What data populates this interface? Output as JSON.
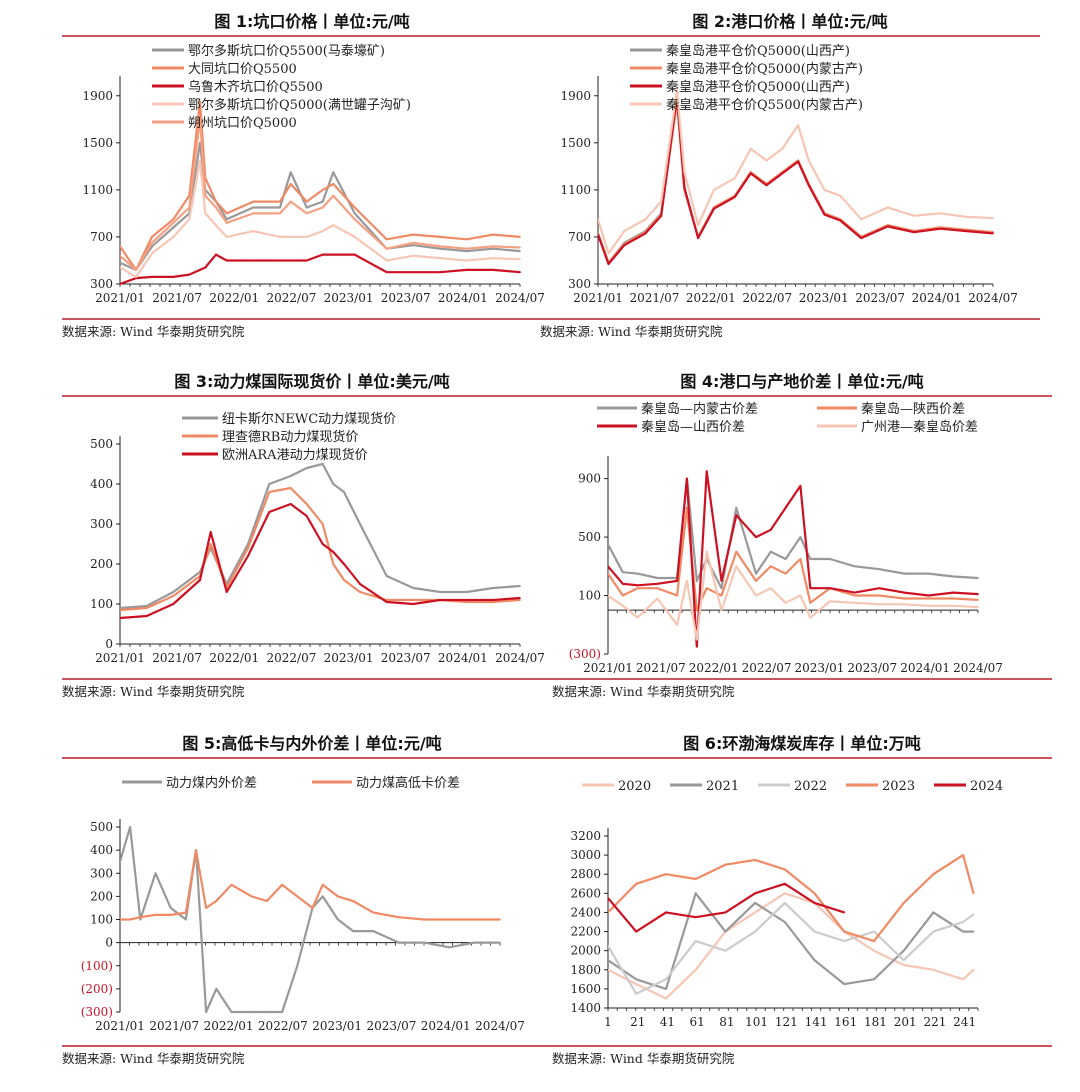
{
  "source": "数据来源:  Wind 华泰期货研究院",
  "figures": [
    {
      "title": "图 1:坑口价格丨单位:元/吨"
    },
    {
      "title": "图 2:港口价格丨单位:元/吨"
    },
    {
      "title": "图 3:动力煤国际现货价丨单位:美元/吨"
    },
    {
      "title": "图 4:港口与产地价差丨单位:元/吨"
    },
    {
      "title": "图 5:高低卡与内外价差丨单位:元/吨"
    },
    {
      "title": "图 6:环渤海煤炭库存丨单位:万吨"
    }
  ],
  "chart_data": [
    {
      "type": "line",
      "title": "图 1:坑口价格丨单位:元/吨",
      "x_tick_labels": [
        "2021/01",
        "2021/07",
        "2022/01",
        "2022/07",
        "2023/01",
        "2023/07",
        "2024/01",
        "2024/07"
      ],
      "x_range": [
        2021.0,
        2024.75
      ],
      "y_ticks": [
        300,
        700,
        1100,
        1500,
        1900
      ],
      "ylim": [
        300,
        2000
      ],
      "legend_position": "top-left",
      "x": [
        2021.0,
        2021.15,
        2021.3,
        2021.5,
        2021.65,
        2021.75,
        2021.8,
        2021.9,
        2022.0,
        2022.25,
        2022.5,
        2022.6,
        2022.75,
        2022.9,
        2023.0,
        2023.2,
        2023.5,
        2023.75,
        2024.0,
        2024.25,
        2024.5,
        2024.75
      ],
      "series": [
        {
          "name": "鄂尔多斯坑口价Q5500(马泰壕矿)",
          "color": "#999999",
          "values": [
            480,
            420,
            620,
            780,
            900,
            1500,
            1100,
            1000,
            850,
            950,
            950,
            1250,
            950,
            1000,
            1250,
            900,
            600,
            630,
            600,
            580,
            600,
            580
          ]
        },
        {
          "name": "大同坑口价Q5500",
          "color": "#f08a64",
          "values": [
            620,
            420,
            700,
            850,
            1050,
            1850,
            1200,
            1000,
            900,
            1000,
            1000,
            1150,
            1000,
            1100,
            1150,
            950,
            680,
            720,
            700,
            680,
            720,
            700
          ]
        },
        {
          "name": "乌鲁木齐坑口价Q5500",
          "color": "#cc1122",
          "values": [
            300,
            350,
            360,
            360,
            380,
            420,
            440,
            550,
            500,
            500,
            500,
            500,
            500,
            550,
            550,
            550,
            400,
            400,
            400,
            420,
            420,
            400
          ]
        },
        {
          "name": "鄂尔多斯坑口价Q5000(满世罐子沟矿)",
          "color": "#f6c6b4",
          "values": [
            440,
            360,
            560,
            700,
            850,
            1350,
            900,
            800,
            700,
            750,
            700,
            700,
            700,
            750,
            800,
            700,
            500,
            540,
            520,
            500,
            520,
            510
          ]
        },
        {
          "name": "朔州坑口价Q5000",
          "color": "#f5a082",
          "values": [
            540,
            420,
            650,
            820,
            950,
            1700,
            1050,
            950,
            820,
            900,
            900,
            1000,
            900,
            950,
            1050,
            850,
            600,
            650,
            620,
            600,
            620,
            610
          ]
        }
      ]
    },
    {
      "type": "line",
      "title": "图 2:港口价格丨单位:元/吨",
      "x_tick_labels": [
        "2021/01",
        "2021/07",
        "2022/01",
        "2022/07",
        "2023/01",
        "2023/07",
        "2024/01",
        "2024/07"
      ],
      "x_range": [
        2021.0,
        2024.75
      ],
      "y_ticks": [
        300,
        700,
        1100,
        1500,
        1900
      ],
      "ylim": [
        300,
        2000
      ],
      "legend_position": "top-left",
      "x": [
        2021.0,
        2021.1,
        2021.25,
        2021.45,
        2021.6,
        2021.75,
        2021.82,
        2021.95,
        2022.1,
        2022.3,
        2022.45,
        2022.6,
        2022.75,
        2022.9,
        2023.0,
        2023.15,
        2023.3,
        2023.5,
        2023.75,
        2024.0,
        2024.25,
        2024.5,
        2024.75
      ],
      "series": [
        {
          "name": "秦皇岛港平仓价Q5000(山西产)",
          "color": "#999999",
          "values": [
            730,
            480,
            650,
            750,
            900,
            1850,
            1100,
            700,
            950,
            1050,
            1250,
            1150,
            1250,
            1350,
            1150,
            900,
            850,
            700,
            800,
            750,
            780,
            760,
            740
          ]
        },
        {
          "name": "秦皇岛港平仓价Q5000(内蒙古产)",
          "color": "#f08a64",
          "values": [
            730,
            480,
            640,
            740,
            890,
            1850,
            1100,
            700,
            950,
            1050,
            1250,
            1150,
            1250,
            1350,
            1150,
            900,
            850,
            700,
            800,
            750,
            780,
            760,
            740
          ]
        },
        {
          "name": "秦皇岛港平仓价Q5000(山西产)",
          "color": "#cc1122",
          "values": [
            720,
            470,
            630,
            730,
            880,
            1900,
            1120,
            690,
            940,
            1040,
            1240,
            1140,
            1240,
            1340,
            1140,
            890,
            840,
            690,
            790,
            740,
            770,
            750,
            730
          ]
        },
        {
          "name": "秦皇岛港平仓价Q5500(内蒙古产)",
          "color": "#f6c6b4",
          "values": [
            850,
            560,
            750,
            850,
            1000,
            1950,
            1250,
            800,
            1100,
            1200,
            1450,
            1350,
            1450,
            1650,
            1350,
            1100,
            1050,
            850,
            950,
            880,
            900,
            870,
            860
          ]
        }
      ]
    },
    {
      "type": "line",
      "title": "图 3:动力煤国际现货价丨单位:美元/吨",
      "x_tick_labels": [
        "2021/01",
        "2021/07",
        "2022/01",
        "2022/07",
        "2023/01",
        "2023/07",
        "2024/01",
        "2024/07"
      ],
      "x_range": [
        2021.0,
        2024.75
      ],
      "y_ticks": [
        0,
        100,
        200,
        300,
        400,
        500
      ],
      "ylim": [
        0,
        500
      ],
      "legend_position": "top-center",
      "x": [
        2021.0,
        2021.25,
        2021.5,
        2021.75,
        2021.85,
        2022.0,
        2022.2,
        2022.4,
        2022.6,
        2022.75,
        2022.9,
        2023.0,
        2023.1,
        2023.25,
        2023.5,
        2023.75,
        2024.0,
        2024.25,
        2024.5,
        2024.75
      ],
      "series": [
        {
          "name": "纽卡斯尔NEWC动力煤现货价",
          "color": "#999999",
          "values": [
            90,
            95,
            130,
            180,
            240,
            150,
            250,
            400,
            420,
            440,
            450,
            400,
            380,
            300,
            170,
            140,
            130,
            130,
            140,
            145
          ]
        },
        {
          "name": "理查德RB动力煤现货价",
          "color": "#f08a64",
          "values": [
            85,
            90,
            120,
            170,
            250,
            140,
            240,
            380,
            390,
            350,
            300,
            200,
            160,
            130,
            110,
            110,
            110,
            105,
            105,
            110
          ]
        },
        {
          "name": "欧洲ARA港动力煤现货价",
          "color": "#cc1122",
          "values": [
            65,
            70,
            100,
            160,
            280,
            130,
            220,
            330,
            350,
            320,
            250,
            230,
            200,
            150,
            105,
            100,
            110,
            110,
            110,
            115
          ]
        }
      ]
    },
    {
      "type": "line",
      "title": "图 4:港口与产地价差丨单位:元/吨",
      "x_tick_labels": [
        "2021/01",
        "2021/07",
        "2022/01",
        "2022/07",
        "2023/01",
        "2023/07",
        "2024/01",
        "2024/07"
      ],
      "x_range": [
        2021.0,
        2024.75
      ],
      "y_ticks": [
        -300,
        100,
        500,
        900
      ],
      "y_tick_labels": [
        "(300)",
        "100",
        "500",
        "900"
      ],
      "ylim": [
        -300,
        1000
      ],
      "legend_position": "top",
      "x": [
        2021.0,
        2021.15,
        2021.3,
        2021.5,
        2021.7,
        2021.8,
        2021.9,
        2022.0,
        2022.15,
        2022.3,
        2022.5,
        2022.65,
        2022.8,
        2022.95,
        2023.05,
        2023.25,
        2023.5,
        2023.75,
        2024.0,
        2024.25,
        2024.5,
        2024.75
      ],
      "series": [
        {
          "name": "秦皇岛—内蒙古价差",
          "color": "#999999",
          "values": [
            450,
            260,
            250,
            220,
            220,
            900,
            200,
            350,
            150,
            700,
            250,
            400,
            350,
            500,
            350,
            350,
            300,
            280,
            250,
            250,
            230,
            220
          ]
        },
        {
          "name": "秦皇岛—陕西价差",
          "color": "#f08a64",
          "values": [
            250,
            100,
            150,
            150,
            100,
            700,
            0,
            150,
            100,
            400,
            200,
            300,
            250,
            350,
            50,
            150,
            100,
            100,
            80,
            80,
            80,
            70
          ]
        },
        {
          "name": "秦皇岛—山西价差",
          "color": "#cc1122",
          "values": [
            300,
            180,
            170,
            180,
            200,
            900,
            -250,
            950,
            200,
            650,
            500,
            550,
            700,
            850,
            150,
            150,
            120,
            150,
            120,
            100,
            120,
            110
          ]
        },
        {
          "name": "广州港—秦皇岛价差",
          "color": "#f6c6b4",
          "values": [
            100,
            30,
            -50,
            80,
            -100,
            200,
            -200,
            400,
            0,
            300,
            100,
            150,
            50,
            100,
            -50,
            60,
            50,
            40,
            40,
            30,
            30,
            20
          ]
        }
      ]
    },
    {
      "type": "line",
      "title": "图 5:高低卡与内外价差丨单位:元/吨",
      "x_tick_labels": [
        "2021/01",
        "2021/07",
        "2022/01",
        "2022/07",
        "2023/01",
        "2023/07",
        "2024/01",
        "2024/07"
      ],
      "x_range": [
        2021.0,
        2024.75
      ],
      "y_ticks": [
        -300,
        -200,
        -100,
        0,
        100,
        200,
        300,
        400,
        500
      ],
      "y_tick_labels": [
        "(300)",
        "(200)",
        "(100)",
        "0",
        "100",
        "200",
        "300",
        "400",
        "500"
      ],
      "ylim": [
        -300,
        500
      ],
      "legend_position": "top",
      "x": [
        2021.0,
        2021.1,
        2021.2,
        2021.35,
        2021.5,
        2021.65,
        2021.75,
        2021.85,
        2021.95,
        2022.1,
        2022.3,
        2022.45,
        2022.6,
        2022.75,
        2022.9,
        2023.0,
        2023.15,
        2023.3,
        2023.5,
        2023.75,
        2024.0,
        2024.25,
        2024.5,
        2024.75
      ],
      "series": [
        {
          "name": "动力煤内外价差",
          "color": "#999999",
          "values": [
            350,
            500,
            100,
            300,
            150,
            100,
            400,
            -300,
            -200,
            -300,
            -300,
            -300,
            -300,
            -100,
            150,
            200,
            100,
            50,
            50,
            0,
            0,
            -20,
            0,
            0
          ]
        },
        {
          "name": "动力煤高低卡价差",
          "color": "#f08a64",
          "values": [
            100,
            100,
            110,
            120,
            120,
            130,
            400,
            150,
            180,
            250,
            200,
            180,
            250,
            200,
            150,
            250,
            200,
            180,
            130,
            110,
            100,
            100,
            100,
            100
          ]
        }
      ]
    },
    {
      "type": "line",
      "title": "图 6:环渤海煤炭库存丨单位:万吨",
      "x_tick_labels": [
        "1",
        "21",
        "41",
        "61",
        "81",
        "101",
        "121",
        "141",
        "161",
        "181",
        "201",
        "221",
        "241"
      ],
      "x_range": [
        1,
        250
      ],
      "y_ticks": [
        1400,
        1600,
        1800,
        2000,
        2200,
        2400,
        2600,
        2800,
        3000,
        3200
      ],
      "ylim": [
        1400,
        3200
      ],
      "legend_position": "top",
      "x": [
        1,
        20,
        40,
        60,
        80,
        100,
        120,
        140,
        160,
        180,
        200,
        220,
        240,
        247
      ],
      "series": [
        {
          "name": "2020",
          "color": "#f6c6b4",
          "values": [
            1800,
            1650,
            1500,
            1800,
            2200,
            2400,
            2600,
            2500,
            2200,
            2000,
            1850,
            1800,
            1700,
            1800
          ]
        },
        {
          "name": "2021",
          "color": "#999999",
          "values": [
            1900,
            1700,
            1600,
            2600,
            2200,
            2500,
            2300,
            1900,
            1650,
            1700,
            2000,
            2400,
            2200,
            2200
          ]
        },
        {
          "name": "2022",
          "color": "#cccccc",
          "values": [
            2050,
            1550,
            1700,
            2100,
            2000,
            2200,
            2500,
            2200,
            2100,
            2200,
            1900,
            2200,
            2300,
            2380
          ]
        },
        {
          "name": "2023",
          "color": "#f08a64",
          "values": [
            2400,
            2700,
            2800,
            2750,
            2900,
            2950,
            2850,
            2600,
            2200,
            2100,
            2500,
            2800,
            3000,
            2600
          ]
        },
        {
          "name": "2024",
          "color": "#cc1122",
          "values": [
            2550,
            2200,
            2400,
            2350,
            2400,
            2600,
            2700,
            2500,
            2400,
            null,
            null,
            null,
            null,
            null
          ]
        }
      ]
    }
  ]
}
